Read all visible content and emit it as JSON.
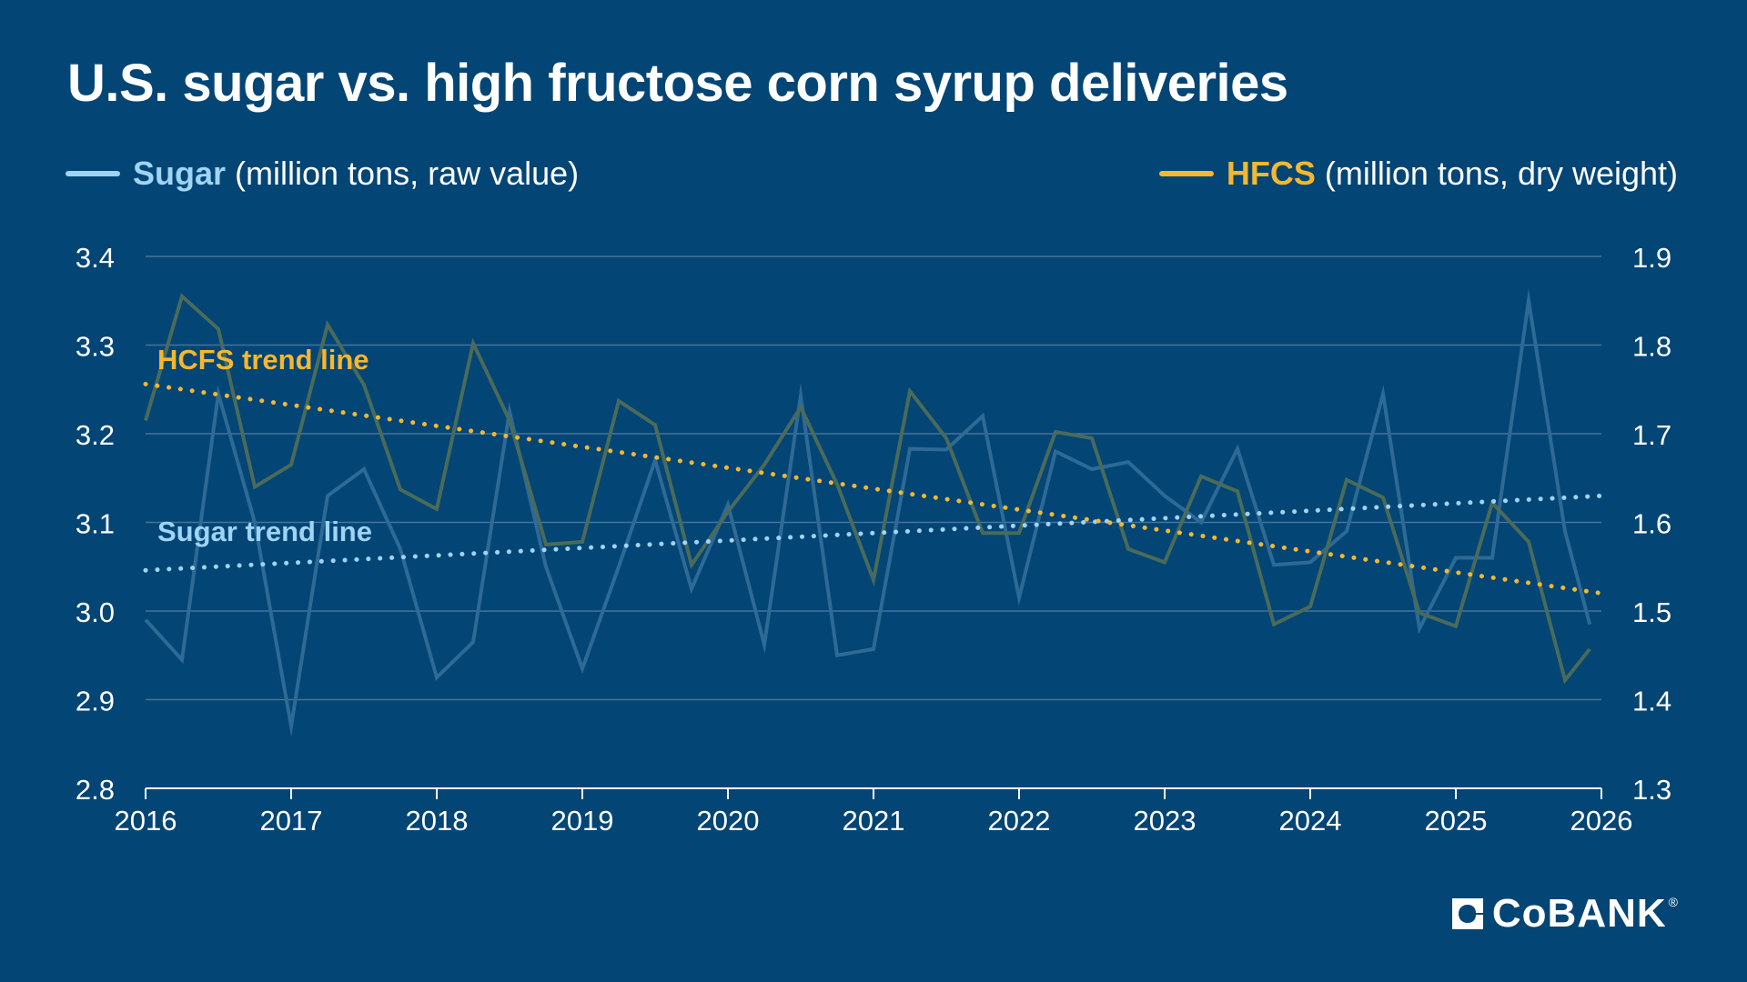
{
  "title": "U.S. sugar vs. high fructose corn syrup deliveries",
  "legend": {
    "sugar": {
      "name": "Sugar",
      "unit": "(million tons, raw value)"
    },
    "hfcs": {
      "name": "HFCS",
      "unit": "(million tons, dry weight)"
    }
  },
  "colors": {
    "background": "#034575",
    "sugar_line": "#2e6a96",
    "hfcs_line": "#4a6b5a",
    "sugar_trend": "#9fd4f4",
    "hfcs_trend": "#f5b730",
    "grid": "#47739b",
    "text": "#ffffff"
  },
  "logo": {
    "text": "CoBANK",
    "icon": "cobank-logo-icon",
    "reg": "®"
  },
  "chart_data": {
    "type": "line",
    "x_label_ticks": [
      "2016",
      "2017",
      "2018",
      "2019",
      "2020",
      "2021",
      "2022",
      "2023",
      "2024",
      "2025",
      "2026"
    ],
    "x_range": [
      2016,
      2026
    ],
    "y_left": {
      "min": 2.8,
      "max": 3.4,
      "ticks": [
        "3.4",
        "3.3",
        "3.2",
        "3.1",
        "3.0",
        "2.9",
        "2.8"
      ]
    },
    "y_right": {
      "min": 1.3,
      "max": 1.9,
      "ticks": [
        "1.9",
        "1.8",
        "1.7",
        "1.6",
        "1.5",
        "1.4",
        "1.3"
      ]
    },
    "grid": true,
    "series": [
      {
        "name": "Sugar",
        "axis": "left",
        "x": [
          2016,
          2016.25,
          2016.5,
          2016.75,
          2017,
          2017.25,
          2017.5,
          2017.75,
          2018,
          2018.25,
          2018.5,
          2018.75,
          2019,
          2019.25,
          2019.5,
          2019.75,
          2020,
          2020.25,
          2020.5,
          2020.75,
          2021,
          2021.25,
          2021.5,
          2021.75,
          2022,
          2022.25,
          2022.5,
          2022.75,
          2023,
          2023.25,
          2023.5,
          2023.75,
          2024,
          2024.25,
          2024.5,
          2024.75,
          2025,
          2025.25,
          2025.5,
          2025.75,
          2025.92
        ],
        "values": [
          2.99,
          2.945,
          3.245,
          3.1,
          2.87,
          3.13,
          3.16,
          3.07,
          2.925,
          2.965,
          3.225,
          3.05,
          2.935,
          3.05,
          3.17,
          3.025,
          3.12,
          2.962,
          3.243,
          2.95,
          2.957,
          3.183,
          3.182,
          3.22,
          3.015,
          3.18,
          3.16,
          3.168,
          3.13,
          3.1,
          3.183,
          3.052,
          3.055,
          3.09,
          3.245,
          2.98,
          3.06,
          3.06,
          3.35,
          3.09,
          2.985
        ]
      },
      {
        "name": "HFCS",
        "axis": "right",
        "x": [
          2016,
          2016.25,
          2016.5,
          2016.75,
          2017,
          2017.25,
          2017.5,
          2017.75,
          2018,
          2018.25,
          2018.5,
          2018.75,
          2019,
          2019.25,
          2019.5,
          2019.75,
          2020,
          2020.25,
          2020.5,
          2020.75,
          2021,
          2021.25,
          2021.5,
          2021.75,
          2022,
          2022.25,
          2022.5,
          2022.75,
          2023,
          2023.25,
          2023.5,
          2023.75,
          2024,
          2024.25,
          2024.5,
          2024.75,
          2025,
          2025.25,
          2025.5,
          2025.75,
          2025.92
        ],
        "values": [
          1.715,
          1.855,
          1.818,
          1.64,
          1.665,
          1.823,
          1.755,
          1.637,
          1.615,
          1.802,
          1.715,
          1.575,
          1.578,
          1.737,
          1.71,
          1.552,
          1.612,
          1.665,
          1.73,
          1.643,
          1.535,
          1.748,
          1.695,
          1.588,
          1.588,
          1.702,
          1.695,
          1.57,
          1.555,
          1.652,
          1.635,
          1.485,
          1.505,
          1.648,
          1.628,
          1.498,
          1.483,
          1.622,
          1.578,
          1.422,
          1.457
        ]
      },
      {
        "name": "Sugar trend line",
        "axis": "left",
        "style": "dotted",
        "x": [
          2016,
          2026
        ],
        "values": [
          3.046,
          3.13
        ]
      },
      {
        "name": "HCFS trend line",
        "axis": "right",
        "style": "dotted",
        "x": [
          2016,
          2026
        ],
        "values": [
          1.756,
          1.52
        ]
      }
    ],
    "annotations": [
      "HCFS trend line",
      "Sugar trend line"
    ]
  }
}
